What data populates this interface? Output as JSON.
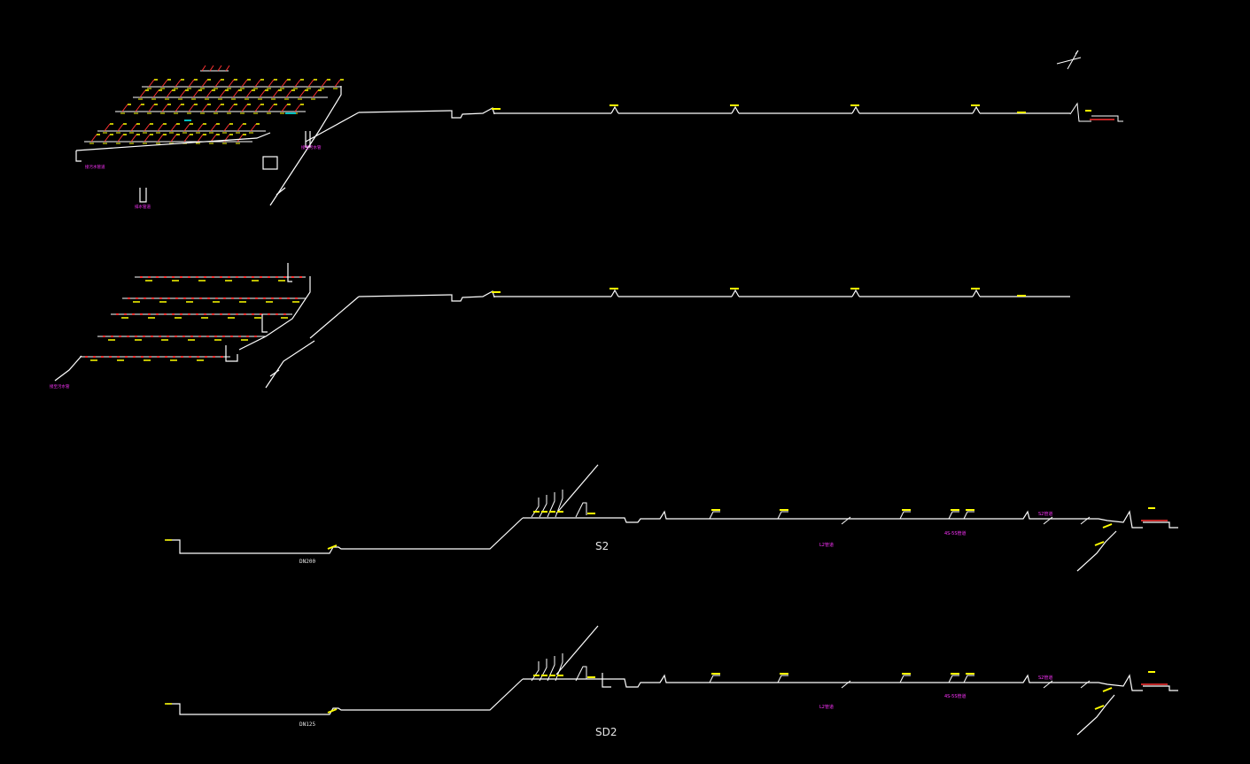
{
  "drawing": {
    "background": "#000000",
    "colors": {
      "pipe": "#ffffff",
      "fitting": "#ff3333",
      "tag": "#ffff00",
      "note": "#ff33ff",
      "accent": "#00ffff"
    },
    "labels": {
      "s2_title": "S2",
      "sd2_title": "SD2",
      "s2_pipe_size": "DN200",
      "sd2_pipe_size": "DN125",
      "s2_note_45": "4S-5S管道",
      "s2_note_l2": "L2管道",
      "s2_note_s2": "S2管道",
      "sd2_note_45": "4S-5S管道",
      "sd2_note_l2": "L2管道",
      "sd2_note_s2": "S2管道",
      "top_note_a": "接污水管道",
      "top_note_b": "排水管道",
      "top_note_c": "接至污水管",
      "mid_note_a": "接至污水管"
    }
  }
}
